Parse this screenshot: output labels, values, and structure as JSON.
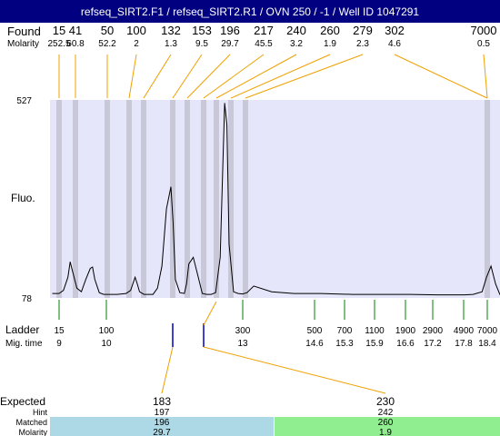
{
  "title": "refseq_SIRT2.F1 / refseq_SIRT2.R1 / OVN 250 / -1 / Well ID 1047291",
  "labels": {
    "found": "Found",
    "molarity": "Molarity",
    "fluo": "Fluo.",
    "ladder": "Ladder",
    "mig_time": "Mig. time",
    "expected": "Expected",
    "hint": "Hint",
    "matched": "Matched",
    "molarity_row": "Molarity"
  },
  "colors": {
    "title_bg": "#000080",
    "plot_bg": "#e6e6fa",
    "band": "#c8c8d8",
    "found_line": "#f0a000",
    "ladder_line": "#008000",
    "marker": "#0000c0",
    "expected_line": "#f0a000",
    "matched_blue": "#add8e6",
    "matched_green": "#90ee90",
    "trace": "#000000"
  },
  "chart_data": {
    "type": "line",
    "title": "refseq_SIRT2.F1 / refseq_SIRT2.R1 / OVN 250 / -1 / Well ID 1047291",
    "ylabel": "Fluo.",
    "ylim": [
      78,
      527
    ],
    "y_ticks": [
      "527",
      "78"
    ],
    "found_peaks": [
      {
        "size": "15",
        "molarity": "252.5"
      },
      {
        "size": "41",
        "molarity": "60.8"
      },
      {
        "size": "50",
        "molarity": "52.2"
      },
      {
        "size": "100",
        "molarity": "2"
      },
      {
        "size": "132",
        "molarity": "1.3"
      },
      {
        "size": "153",
        "molarity": "9.5"
      },
      {
        "size": "196",
        "molarity": "29.7"
      },
      {
        "size": "217",
        "molarity": "45.5"
      },
      {
        "size": "240",
        "molarity": "3.2"
      },
      {
        "size": "260",
        "molarity": "1.9"
      },
      {
        "size": "279",
        "molarity": "2.3"
      },
      {
        "size": "302",
        "molarity": "4.6"
      },
      {
        "size": "7000",
        "molarity": "0.5"
      }
    ],
    "ladder": [
      {
        "size": "15",
        "mig_time": "9"
      },
      {
        "size": "100",
        "mig_time": "10"
      },
      {
        "size": "300",
        "mig_time": "13"
      },
      {
        "size": "500",
        "mig_time": "14.6"
      },
      {
        "size": "700",
        "mig_time": "15.3"
      },
      {
        "size": "1100",
        "mig_time": "15.9"
      },
      {
        "size": "1900",
        "mig_time": "16.6"
      },
      {
        "size": "2900",
        "mig_time": "17.2"
      },
      {
        "size": "4900",
        "mig_time": "17.8"
      },
      {
        "size": "7000",
        "mig_time": "18.4"
      }
    ],
    "expected": [
      {
        "size": "183",
        "hint": "197",
        "matched": "196",
        "molarity": "29.7"
      },
      {
        "size": "230",
        "hint": "242",
        "matched": "260",
        "molarity": "1.9"
      }
    ],
    "trace_mig_time": [
      8.6,
      8.75,
      8.85,
      8.95,
      9.0,
      9.05,
      9.15,
      9.25,
      9.35,
      9.45,
      9.5,
      9.55,
      9.65,
      9.75,
      9.85,
      9.95,
      10.05,
      10.15,
      10.25,
      10.35,
      10.45,
      10.5,
      10.55,
      10.65,
      10.75,
      10.85,
      10.95,
      11.05,
      11.15,
      11.25,
      11.3,
      11.35,
      11.45,
      11.55,
      11.6,
      11.65,
      11.75,
      11.85,
      11.95,
      12.05,
      12.15,
      12.25,
      12.35,
      12.45,
      12.5,
      12.55,
      12.65,
      12.75,
      12.85,
      12.95,
      13.1,
      13.5,
      14.0,
      14.6,
      15.3,
      15.9,
      16.6,
      17.2,
      17.8,
      18.0,
      18.2,
      18.3,
      18.4,
      18.5,
      18.6
    ],
    "trace_fluo": [
      88,
      88,
      95,
      125,
      160,
      140,
      100,
      92,
      120,
      145,
      148,
      120,
      90,
      86,
      86,
      86,
      86,
      87,
      88,
      95,
      125,
      110,
      92,
      86,
      86,
      86,
      100,
      150,
      280,
      330,
      250,
      120,
      90,
      88,
      110,
      155,
      170,
      130,
      88,
      86,
      86,
      90,
      170,
      520,
      470,
      200,
      92,
      88,
      87,
      90,
      105,
      92,
      88,
      88,
      86,
      86,
      86,
      85,
      85,
      86,
      92,
      125,
      150,
      110,
      85
    ]
  }
}
